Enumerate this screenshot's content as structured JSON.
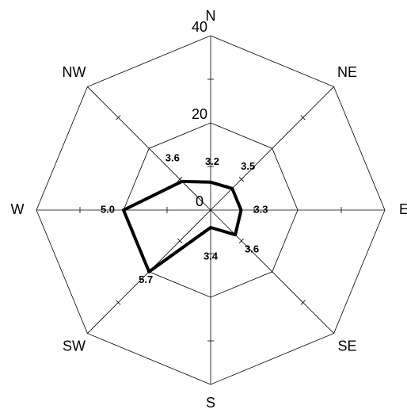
{
  "chart_data": {
    "type": "radar",
    "categories": [
      "N",
      "NE",
      "E",
      "SE",
      "S",
      "SW",
      "W",
      "NW"
    ],
    "series": [
      {
        "values": [
          6.4,
          7,
          7,
          8,
          4,
          20,
          20,
          9.3
        ],
        "color": "#000000",
        "value_labels": [
          "3.2",
          "3.5",
          "3.3",
          "3.6",
          "3.4",
          "5.7",
          "5.0",
          "3.6"
        ]
      }
    ],
    "rlim": [
      0,
      40
    ],
    "rticks": [
      0,
      20,
      40
    ],
    "minor_ticks": [
      10,
      30
    ],
    "grid": true
  }
}
